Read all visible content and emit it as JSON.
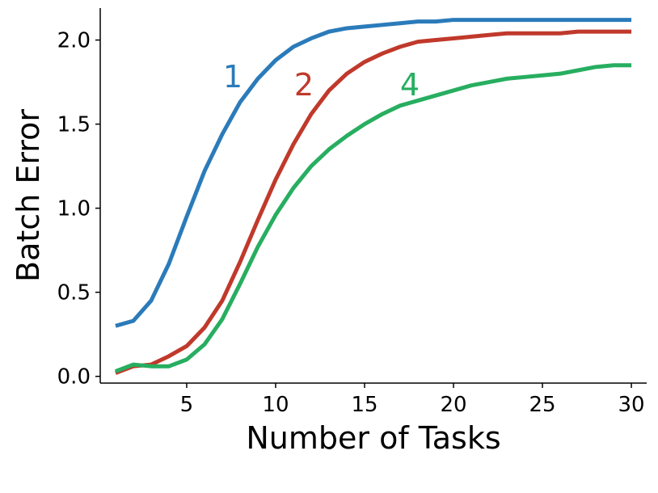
{
  "chart_data": {
    "type": "line",
    "x_label": "Number of Tasks",
    "y_label": "Batch Error",
    "x": [
      1,
      2,
      3,
      4,
      5,
      6,
      7,
      8,
      9,
      10,
      11,
      12,
      13,
      14,
      15,
      16,
      17,
      18,
      19,
      20,
      21,
      22,
      23,
      24,
      25,
      26,
      27,
      28,
      29,
      30
    ],
    "series": [
      {
        "name": "1",
        "color": "#2b7bba",
        "values": [
          0.3,
          0.33,
          0.45,
          0.67,
          0.95,
          1.22,
          1.44,
          1.63,
          1.77,
          1.88,
          1.96,
          2.01,
          2.05,
          2.07,
          2.08,
          2.09,
          2.1,
          2.11,
          2.11,
          2.12,
          2.12,
          2.12,
          2.12,
          2.12,
          2.12,
          2.12,
          2.12,
          2.12,
          2.12,
          2.12
        ]
      },
      {
        "name": "2",
        "color": "#c0392b",
        "values": [
          0.02,
          0.06,
          0.07,
          0.12,
          0.18,
          0.29,
          0.45,
          0.68,
          0.93,
          1.17,
          1.38,
          1.56,
          1.7,
          1.8,
          1.87,
          1.92,
          1.96,
          1.99,
          2.0,
          2.01,
          2.02,
          2.03,
          2.04,
          2.04,
          2.04,
          2.04,
          2.05,
          2.05,
          2.05,
          2.05
        ]
      },
      {
        "name": "4",
        "color": "#27ae60",
        "values": [
          0.03,
          0.07,
          0.06,
          0.06,
          0.1,
          0.19,
          0.34,
          0.55,
          0.77,
          0.96,
          1.12,
          1.25,
          1.35,
          1.43,
          1.5,
          1.56,
          1.61,
          1.64,
          1.67,
          1.7,
          1.73,
          1.75,
          1.77,
          1.78,
          1.79,
          1.8,
          1.82,
          1.84,
          1.85,
          1.85
        ]
      }
    ],
    "xlim": [
      0.14,
      30.86
    ],
    "ylim": [
      -0.04,
      2.19
    ],
    "xticks": [
      5,
      10,
      15,
      20,
      25,
      30
    ],
    "yticks": [
      {
        "value": 0,
        "label": "0.0"
      },
      0.5,
      {
        "value": 1,
        "label": "1.0"
      },
      1.5,
      {
        "value": 2,
        "label": "2.0"
      }
    ]
  }
}
